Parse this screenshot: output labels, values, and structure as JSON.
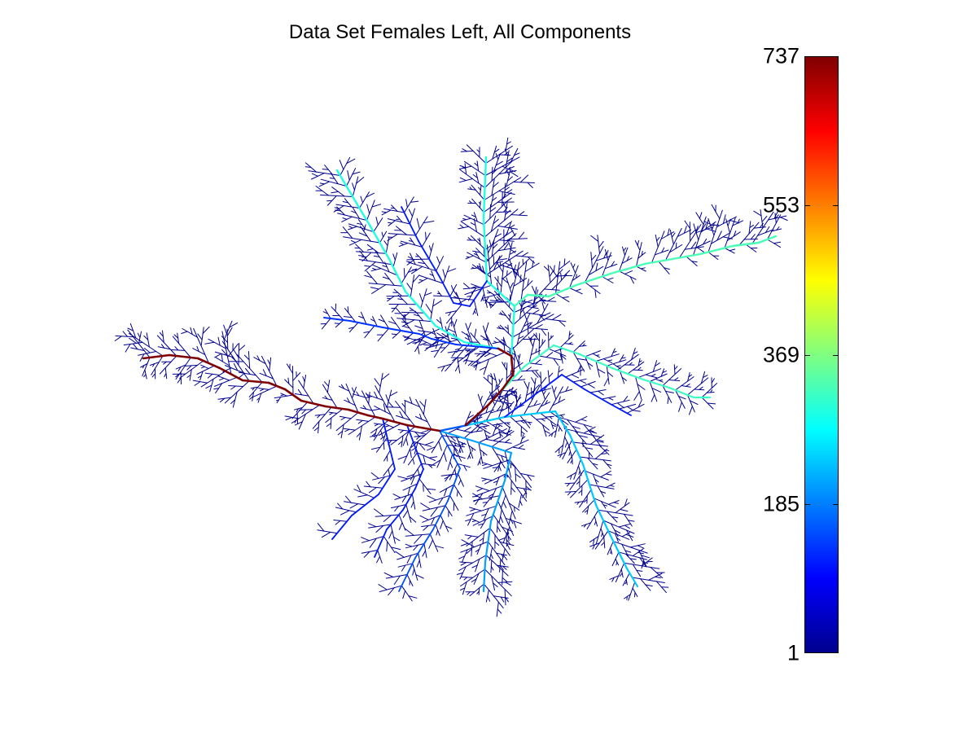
{
  "chart_data": {
    "type": "tree",
    "title": "Data Set Females Left, All Components",
    "xlabel": "",
    "ylabel": "",
    "axes_visible": false,
    "grid": false,
    "colormap": "jet",
    "colorbar": {
      "location": "right",
      "range": [
        1,
        737
      ],
      "ticks": [
        {
          "value": 737,
          "label": "737"
        },
        {
          "value": 553,
          "label": "553"
        },
        {
          "value": 369,
          "label": "369"
        },
        {
          "value": 185,
          "label": "185"
        },
        {
          "value": 1,
          "label": "1"
        }
      ]
    },
    "branch_value_encoding": "branch color maps the component count below each branch onto the colorbar",
    "main_branches": [
      {
        "name": "root trunk to far left tip",
        "value": 737
      },
      {
        "name": "upper-left long branch",
        "value": 300
      },
      {
        "name": "upper vertical branch",
        "value": 300
      },
      {
        "name": "right long branch",
        "value": 330
      },
      {
        "name": "mid-right branch",
        "value": 320
      },
      {
        "name": "lower-right long branch",
        "value": 240
      },
      {
        "name": "lower-middle branch",
        "value": 210
      },
      {
        "name": "left inner upper branch",
        "value": 130
      }
    ]
  }
}
